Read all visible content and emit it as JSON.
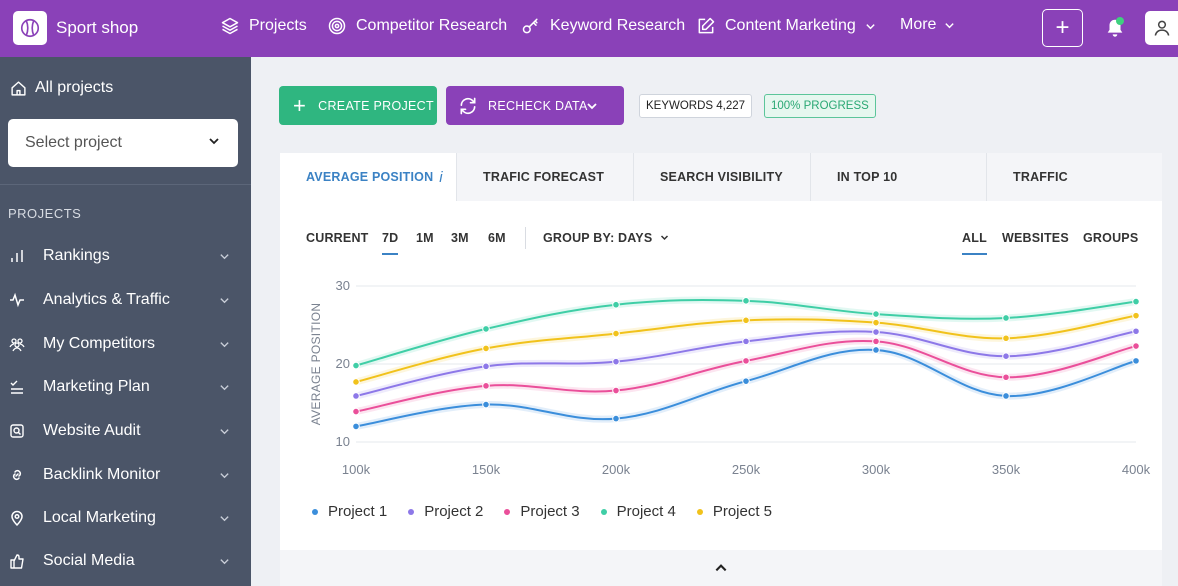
{
  "topbar": {
    "brand": "Sport shop",
    "nav": [
      {
        "label": "Projects",
        "icon": "layers-icon"
      },
      {
        "label": "Competitor Research",
        "icon": "target-icon"
      },
      {
        "label": "Keyword Research",
        "icon": "key-icon"
      },
      {
        "label": "Content Marketing",
        "icon": "edit-icon"
      },
      {
        "label": "More",
        "icon": ""
      }
    ],
    "accent": "#8a41b8"
  },
  "sidebar": {
    "all_projects": "All projects",
    "select_placeholder": "Select project",
    "section": "PROJECTS",
    "items": [
      {
        "label": "Rankings",
        "icon": "bar-chart-icon"
      },
      {
        "label": "Analytics & Traffic",
        "icon": "pulse-icon"
      },
      {
        "label": "My Competitors",
        "icon": "users-icon"
      },
      {
        "label": "Marketing Plan",
        "icon": "checklist-icon"
      },
      {
        "label": "Website Audit",
        "icon": "audit-icon"
      },
      {
        "label": "Backlink Monitor",
        "icon": "link-icon"
      },
      {
        "label": "Local Marketing",
        "icon": "map-pin-icon"
      },
      {
        "label": "Social Media",
        "icon": "thumbs-up-icon"
      }
    ]
  },
  "toolbar": {
    "create_label": "CREATE PROJECT",
    "recheck_label": "RECHECK DATA",
    "keywords_badge": "KEYWORDS 4,227",
    "progress_badge": "100% PROGRESS"
  },
  "tabs": [
    {
      "label": "AVERAGE POSITION",
      "info": "i"
    },
    {
      "label": "TRAFIC FORECAST"
    },
    {
      "label": "SEARCH VISIBILITY"
    },
    {
      "label": "IN TOP 10"
    },
    {
      "label": "TRAFFIC"
    }
  ],
  "range": {
    "options": [
      "CURRENT",
      "7D",
      "1M",
      "3M",
      "6M"
    ],
    "group_by_label": "GROUP BY:",
    "group_by_value": "DAYS",
    "filters": [
      "ALL",
      "WEBSITES",
      "GROUPS"
    ]
  },
  "chart_data": {
    "type": "line",
    "ylabel": "AVERAGE POSITION",
    "x": [
      "100k",
      "150k",
      "200k",
      "250k",
      "300k",
      "350k",
      "400k"
    ],
    "y_ticks": [
      10,
      20,
      30
    ],
    "ylim": [
      10,
      30
    ],
    "grid": true,
    "legend_position": "bottom-left",
    "series": [
      {
        "name": "Project 1",
        "color": "#3b8edb",
        "values": [
          12.0,
          14.8,
          13.0,
          17.8,
          21.8,
          15.9,
          20.4
        ]
      },
      {
        "name": "Project 2",
        "color": "#8d78e8",
        "values": [
          15.9,
          19.7,
          20.3,
          22.9,
          24.1,
          21.0,
          24.2
        ]
      },
      {
        "name": "Project 3",
        "color": "#ea4f9a",
        "values": [
          13.9,
          17.2,
          16.6,
          20.4,
          22.9,
          18.3,
          22.3
        ]
      },
      {
        "name": "Project 4",
        "color": "#3fcea6",
        "values": [
          19.8,
          24.5,
          27.6,
          28.1,
          26.4,
          25.9,
          28.0
        ]
      },
      {
        "name": "Project 5",
        "color": "#f1c21b",
        "values": [
          17.7,
          22.0,
          23.9,
          25.6,
          25.3,
          23.3,
          26.2
        ]
      }
    ]
  }
}
